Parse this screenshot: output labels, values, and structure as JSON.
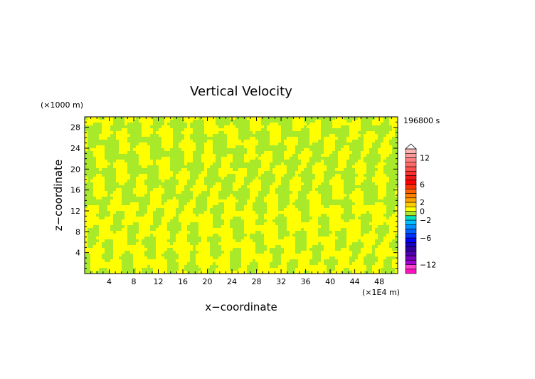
{
  "chart_data": {
    "type": "heatmap",
    "title": "Vertical Velocity",
    "xlabel": "x−coordinate",
    "ylabel": "z−coordinate",
    "x_unit": "(×1E4 m)",
    "y_unit": "(×1000 m)",
    "time_label": "196800 s",
    "xlim": [
      0,
      51
    ],
    "ylim": [
      0,
      30
    ],
    "x_ticks": [
      "4",
      "8",
      "12",
      "16",
      "20",
      "24",
      "28",
      "32",
      "36",
      "40",
      "44",
      "48"
    ],
    "y_ticks": [
      "4",
      "8",
      "12",
      "16",
      "20",
      "24",
      "28"
    ],
    "field_colors": {
      "positive": "#ffff00",
      "negative": "#a8ea2a"
    },
    "colorbar": {
      "labels": [
        {
          "value": 12,
          "text": "12"
        },
        {
          "value": 6,
          "text": "6"
        },
        {
          "value": 2,
          "text": "2"
        },
        {
          "value": 0,
          "text": "0"
        },
        {
          "value": -2,
          "text": "−2"
        },
        {
          "value": -6,
          "text": "−6"
        },
        {
          "value": -12,
          "text": "−12"
        }
      ],
      "levels": [
        {
          "lo": -14,
          "hi": -13,
          "color": "#ff10c0"
        },
        {
          "lo": -13,
          "hi": -12,
          "color": "#ff40d0"
        },
        {
          "lo": -12,
          "hi": -11,
          "color": "#a000d0"
        },
        {
          "lo": -11,
          "hi": -10,
          "color": "#7a00c0"
        },
        {
          "lo": -10,
          "hi": -9,
          "color": "#5000b0"
        },
        {
          "lo": -9,
          "hi": -8,
          "color": "#3000a0"
        },
        {
          "lo": -8,
          "hi": -7,
          "color": "#1800c0"
        },
        {
          "lo": -7,
          "hi": -6,
          "color": "#0000ff"
        },
        {
          "lo": -6,
          "hi": -5,
          "color": "#0030ff"
        },
        {
          "lo": -5,
          "hi": -4,
          "color": "#0060ff"
        },
        {
          "lo": -4,
          "hi": -3,
          "color": "#0090ff"
        },
        {
          "lo": -3,
          "hi": -2,
          "color": "#00c0ff"
        },
        {
          "lo": -2,
          "hi": -1,
          "color": "#00e0c0"
        },
        {
          "lo": -1,
          "hi": 0,
          "color": "#a8ea2a"
        },
        {
          "lo": 0,
          "hi": 1,
          "color": "#ffff00"
        },
        {
          "lo": 1,
          "hi": 2,
          "color": "#ffcc00"
        },
        {
          "lo": 2,
          "hi": 3,
          "color": "#ffa000"
        },
        {
          "lo": 3,
          "hi": 4,
          "color": "#ff8000"
        },
        {
          "lo": 4,
          "hi": 5,
          "color": "#ff6000"
        },
        {
          "lo": 5,
          "hi": 6,
          "color": "#ff3000"
        },
        {
          "lo": 6,
          "hi": 7,
          "color": "#ff0000"
        },
        {
          "lo": 7,
          "hi": 8,
          "color": "#f01818"
        },
        {
          "lo": 8,
          "hi": 9,
          "color": "#ff3030"
        },
        {
          "lo": 9,
          "hi": 10,
          "color": "#ff5050"
        },
        {
          "lo": 10,
          "hi": 11,
          "color": "#ff6a6a"
        },
        {
          "lo": 11,
          "hi": 12,
          "color": "#ff8080"
        },
        {
          "lo": 12,
          "hi": 13,
          "color": "#ff9a9a"
        },
        {
          "lo": 13,
          "hi": 14,
          "color": "#ffb4b4"
        }
      ]
    }
  }
}
